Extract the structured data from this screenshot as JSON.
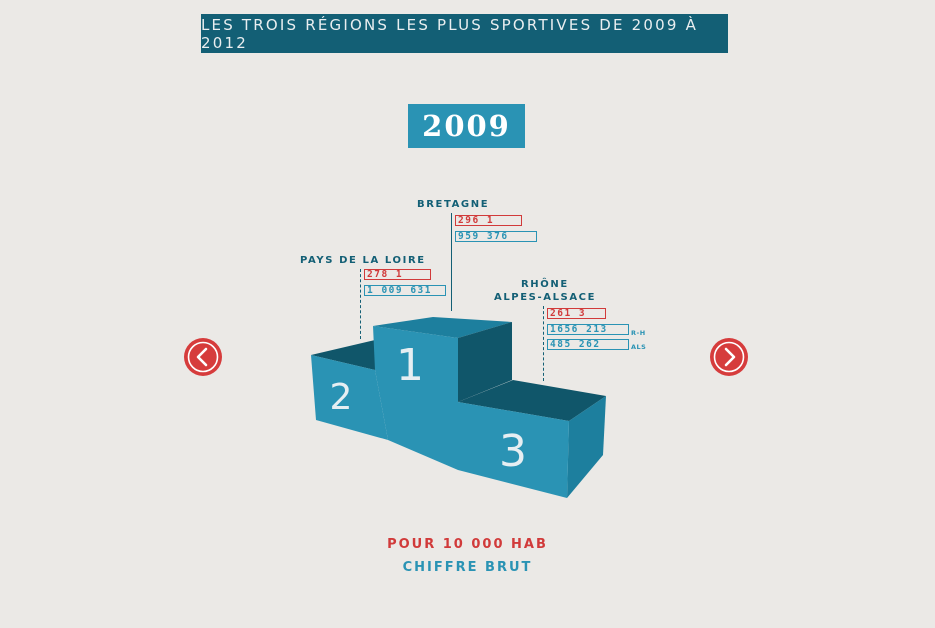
{
  "header": {
    "title": "LES TROIS RÉGIONS LES PLUS SPORTIVES DE 2009 À 2012"
  },
  "year": "2009",
  "podium": {
    "first": "1",
    "second": "2",
    "third": "3"
  },
  "regions": {
    "first": {
      "name": "BRETAGNE",
      "per_10000": "296 1",
      "raw": "959 376"
    },
    "second": {
      "name": "PAYS DE LA LOIRE",
      "per_10000": "278 1",
      "raw": "1 009 631"
    },
    "third": {
      "name_line1": "RHÔNE",
      "name_line2": "ALPES-ALSACE",
      "per_10000": "261 3",
      "raw_rh": "1656 213",
      "raw_rh_tag": "R-H",
      "raw_als": "485 262",
      "raw_als_tag": "ALS"
    }
  },
  "legend": {
    "per_10000_label": "POUR 10 000 HAB",
    "raw_label": "CHIFFRE BRUT"
  },
  "colors": {
    "dark_teal": "#135f75",
    "teal": "#2a93b4",
    "red": "#d63c3c",
    "background": "#ebe9e6"
  },
  "icons": {
    "prev": "chevron-left-icon",
    "next": "chevron-right-icon"
  }
}
